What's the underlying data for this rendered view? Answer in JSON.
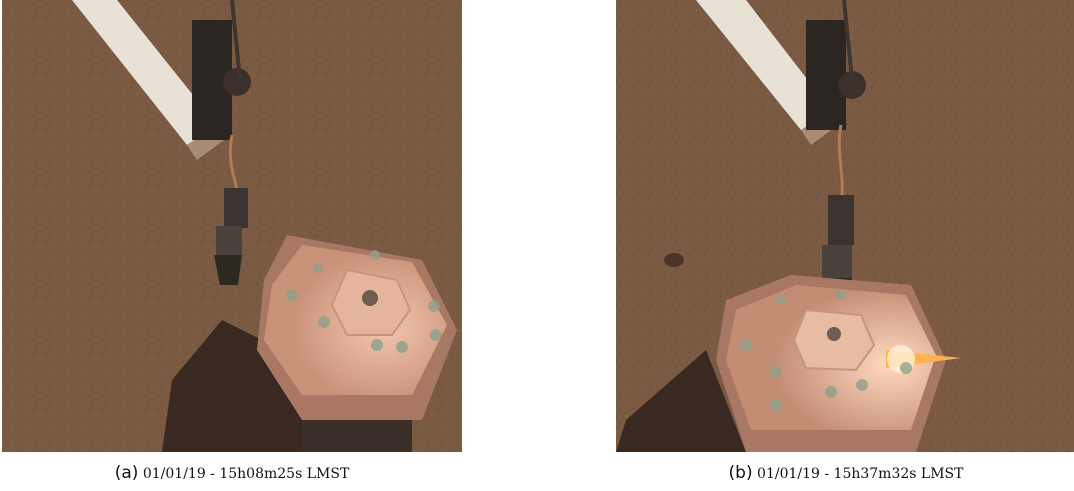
{
  "figure": {
    "panels": [
      {
        "label": "(a)",
        "timestamp": "01/01/19 - 15h08m25s LMST",
        "scene": "lander robotic arm holding grapple above hexagonal dome on martian soil"
      },
      {
        "label": "(b)",
        "timestamp": "01/01/19 - 15h37m32s LMST",
        "scene": "robotic arm grapple lowered onto top of hexagonal dome with sun glint"
      }
    ]
  },
  "colors": {
    "ground": "#7b5a44",
    "ground_dark": "#5c4233",
    "dome": "#d9a488",
    "dome_shadow": "#a87864",
    "arm": "#e8e2d6",
    "shadow": "#2e211a",
    "glint": "#ffb34d"
  }
}
